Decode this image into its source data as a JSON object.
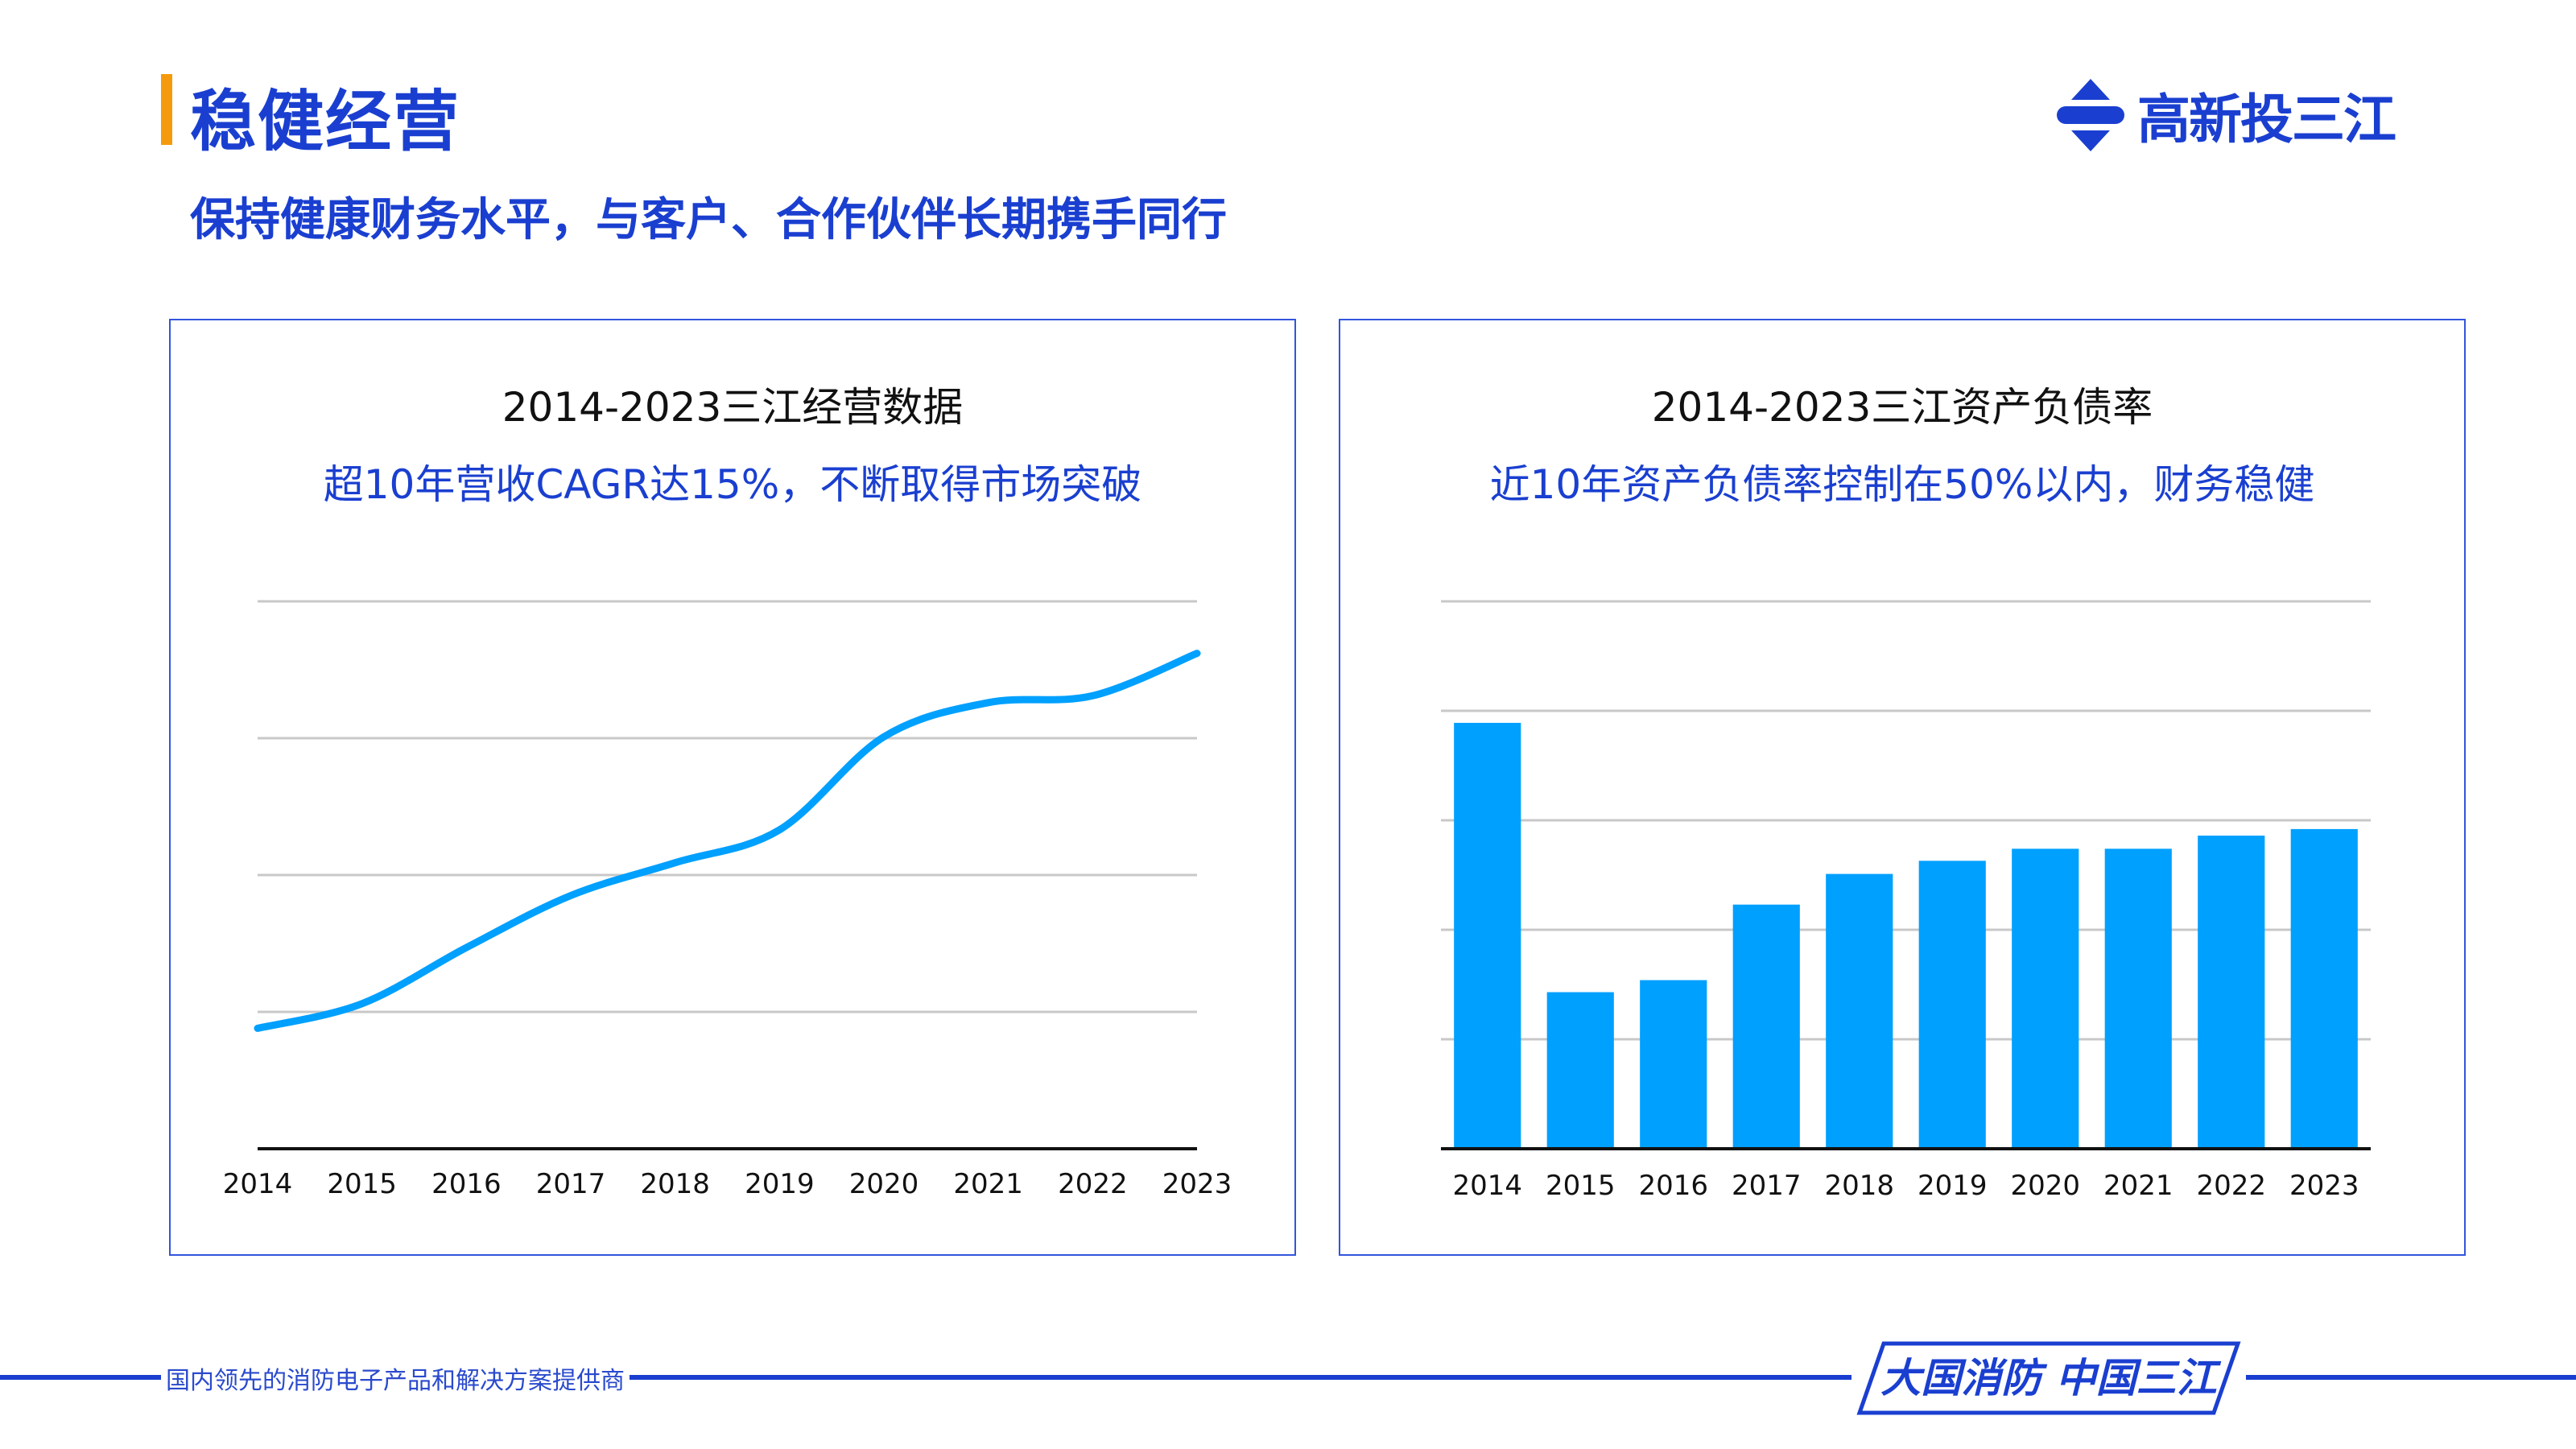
{
  "header": {
    "title": "稳健经营",
    "subtitle": "保持健康财务水平，与客户、合作伙伴长期携手同行",
    "logo_text": "高新投三江",
    "accent_color": "#f59a0c",
    "brand_color": "#1a3fd0"
  },
  "panels": [
    {
      "title": "2014-2023三江经营数据",
      "subtitle": "超10年营收CAGR达15%，不断取得市场突破"
    },
    {
      "title": "2014-2023三江资产负债率",
      "subtitle": "近10年资产负债率控制在50%以内，财务稳健"
    }
  ],
  "chart_data": [
    {
      "type": "line",
      "categories": [
        "2014",
        "2015",
        "2016",
        "2017",
        "2018",
        "2019",
        "2020",
        "2021",
        "2022",
        "2023"
      ],
      "values": [
        0.88,
        1.06,
        1.47,
        1.85,
        2.09,
        2.33,
        3.01,
        3.26,
        3.31,
        3.62
      ],
      "ylim": [
        0,
        4
      ],
      "grid": true,
      "color": "#00a0ff"
    },
    {
      "type": "bar",
      "categories": [
        "2014",
        "2015",
        "2016",
        "2017",
        "2018",
        "2019",
        "2020",
        "2021",
        "2022",
        "2023"
      ],
      "values": [
        38.9,
        14.3,
        15.4,
        22.3,
        25.1,
        26.3,
        27.4,
        27.4,
        28.6,
        29.2
      ],
      "ylim": [
        0,
        50
      ],
      "grid": true,
      "color": "#00a0ff"
    }
  ],
  "footer": {
    "tagline": "国内领先的消防电子产品和解决方案提供商",
    "slogan": "大国消防 中国三江"
  }
}
